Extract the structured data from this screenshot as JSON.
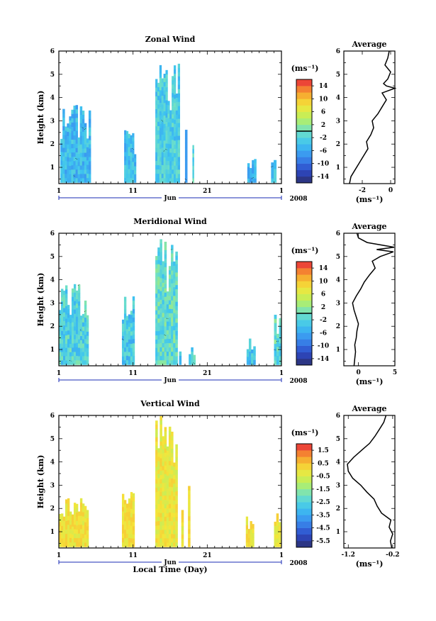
{
  "chart_data": [
    {
      "type": "heatmap",
      "title": "Zonal Wind",
      "ylabel": "Height (km)",
      "xlabel": "",
      "xlim": [
        1,
        31
      ],
      "ylim": [
        0.3,
        6
      ],
      "x_ticks": [
        "1",
        "11",
        "21",
        "1"
      ],
      "x_axis_label": "Jun",
      "year": "2008",
      "y_ticks": [
        "1",
        "2",
        "3",
        "4",
        "5",
        "6"
      ],
      "colorbar": {
        "unit": "(ms⁻¹)",
        "ticks": [
          "14",
          "10",
          "6",
          "2",
          "-2",
          "-6",
          "-10",
          "-14"
        ],
        "range": [
          -16,
          16
        ],
        "contour_level": 0
      },
      "fill": {
        "min": -7,
        "max": 1
      },
      "segments": [
        {
          "start": 1.2,
          "end": 5.3,
          "top": 3.8,
          "value": -4.5
        },
        {
          "start": 9.8,
          "end": 11.4,
          "top": 2.6,
          "value": -4.0
        },
        {
          "start": 14.0,
          "end": 17.3,
          "top": 5.5,
          "value": -2.5
        },
        {
          "start": 18.0,
          "end": 18.3,
          "top": 2.8,
          "value": -12.0
        },
        {
          "start": 19.0,
          "end": 19.2,
          "top": 2.3,
          "value": -2.0
        },
        {
          "start": 26.4,
          "end": 27.6,
          "top": 1.4,
          "value": -5.0
        },
        {
          "start": 29.6,
          "end": 30.3,
          "top": 1.5,
          "value": -3.0
        }
      ],
      "profile": {
        "title": "Average",
        "xlabel": "(ms⁻¹)",
        "xlim": [
          -3.3,
          0.3
        ],
        "x_ticks": [
          -2,
          0
        ],
        "heights": [
          0.3,
          0.6,
          0.9,
          1.2,
          1.5,
          1.8,
          2.1,
          2.4,
          2.7,
          3.0,
          3.3,
          3.6,
          3.9,
          4.2,
          4.4,
          4.5,
          4.6,
          4.8,
          5.1,
          5.4,
          5.7,
          6.0
        ],
        "values": [
          -2.9,
          -2.8,
          -2.5,
          -2.2,
          -1.9,
          -1.6,
          -1.7,
          -1.4,
          -1.2,
          -1.3,
          -0.9,
          -0.6,
          -0.3,
          -0.6,
          0.3,
          -0.3,
          -0.5,
          -0.2,
          0.0,
          -0.4,
          -0.2,
          -0.1
        ]
      }
    },
    {
      "type": "heatmap",
      "title": "Meridional Wind",
      "ylabel": "Height (km)",
      "xlabel": "",
      "xlim": [
        1,
        31
      ],
      "ylim": [
        0.3,
        6
      ],
      "x_ticks": [
        "1",
        "11",
        "21",
        "1"
      ],
      "x_axis_label": "Jun",
      "year": "2008",
      "y_ticks": [
        "1",
        "2",
        "3",
        "4",
        "5",
        "6"
      ],
      "colorbar": {
        "unit": "(ms⁻¹)",
        "ticks": [
          "14",
          "10",
          "6",
          "2",
          "-2",
          "-6",
          "-10",
          "-14"
        ],
        "range": [
          -16,
          16
        ],
        "contour_level": 0
      },
      "fill": {
        "min": -6,
        "max": 3
      },
      "segments": [
        {
          "start": 1.0,
          "end": 5.0,
          "top": 4.1,
          "value": -2.0
        },
        {
          "start": 9.5,
          "end": 11.2,
          "top": 3.8,
          "value": -3.0
        },
        {
          "start": 14.0,
          "end": 17.0,
          "top": 5.8,
          "value": -1.0
        },
        {
          "start": 17.2,
          "end": 17.5,
          "top": 1.2,
          "value": -4.0
        },
        {
          "start": 18.5,
          "end": 19.4,
          "top": 1.1,
          "value": -2.0
        },
        {
          "start": 26.3,
          "end": 27.5,
          "top": 1.5,
          "value": -4.0
        },
        {
          "start": 30.0,
          "end": 31.0,
          "top": 2.7,
          "value": -1.0
        }
      ],
      "profile": {
        "title": "Average",
        "xlabel": "(ms⁻¹)",
        "xlim": [
          -2.0,
          5.0
        ],
        "x_ticks": [
          0,
          5
        ],
        "heights": [
          0.3,
          0.6,
          0.9,
          1.2,
          1.5,
          1.8,
          2.1,
          2.4,
          2.7,
          3.0,
          3.3,
          3.6,
          3.9,
          4.2,
          4.5,
          4.8,
          5.0,
          5.2,
          5.3,
          5.4,
          5.6,
          5.8,
          6.0
        ],
        "values": [
          -0.6,
          -0.5,
          -0.4,
          -0.5,
          -0.3,
          -0.2,
          0.0,
          -0.3,
          -0.6,
          -0.8,
          -0.3,
          0.3,
          0.8,
          1.5,
          2.3,
          1.9,
          3.0,
          4.8,
          2.5,
          4.9,
          1.2,
          0.0,
          -0.2
        ]
      }
    },
    {
      "type": "heatmap",
      "title": "Vertical Wind",
      "ylabel": "Height (km)",
      "xlabel": "Local Time (Day)",
      "xlim": [
        1,
        31
      ],
      "ylim": [
        0.3,
        6
      ],
      "x_ticks": [
        "1",
        "11",
        "21",
        "1"
      ],
      "x_axis_label": "Jun",
      "year": "2008",
      "y_ticks": [
        "1",
        "2",
        "3",
        "4",
        "5",
        "6"
      ],
      "colorbar": {
        "unit": "(ms⁻¹)",
        "ticks": [
          "1.5",
          "0.5",
          "-0.5",
          "-1.5",
          "-2.5",
          "-3.5",
          "-4.5",
          "-5.5"
        ],
        "range": [
          -6,
          2
        ],
        "contour_level": null
      },
      "fill": {
        "min": -1.2,
        "max": 0.3
      },
      "segments": [
        {
          "start": 1.0,
          "end": 5.0,
          "top": 2.6,
          "value": 0.0
        },
        {
          "start": 9.5,
          "end": 11.2,
          "top": 2.8,
          "value": 0.0
        },
        {
          "start": 14.0,
          "end": 17.0,
          "top": 6.0,
          "value": -0.2
        },
        {
          "start": 17.5,
          "end": 17.8,
          "top": 3.0,
          "value": 0.0
        },
        {
          "start": 18.4,
          "end": 18.7,
          "top": 3.5,
          "value": 0.0
        },
        {
          "start": 26.2,
          "end": 27.3,
          "top": 1.7,
          "value": 0.0
        },
        {
          "start": 30.0,
          "end": 30.9,
          "top": 2.1,
          "value": 0.0
        }
      ],
      "profile": {
        "title": "Average",
        "xlabel": "(ms⁻¹)",
        "xlim": [
          -1.3,
          -0.15
        ],
        "x_ticks": [
          -1.2,
          -0.2
        ],
        "tick_labels": [
          "-1.2",
          "-0.2"
        ],
        "heights": [
          0.3,
          0.6,
          0.9,
          1.2,
          1.5,
          1.8,
          2.1,
          2.4,
          2.7,
          3.0,
          3.3,
          3.6,
          3.9,
          4.2,
          4.5,
          4.8,
          5.1,
          5.4,
          5.7,
          6.0
        ],
        "values": [
          -0.22,
          -0.25,
          -0.2,
          -0.28,
          -0.24,
          -0.45,
          -0.55,
          -0.62,
          -0.78,
          -0.92,
          -1.1,
          -1.2,
          -1.22,
          -1.08,
          -0.9,
          -0.72,
          -0.6,
          -0.5,
          -0.4,
          -0.35
        ]
      }
    }
  ]
}
